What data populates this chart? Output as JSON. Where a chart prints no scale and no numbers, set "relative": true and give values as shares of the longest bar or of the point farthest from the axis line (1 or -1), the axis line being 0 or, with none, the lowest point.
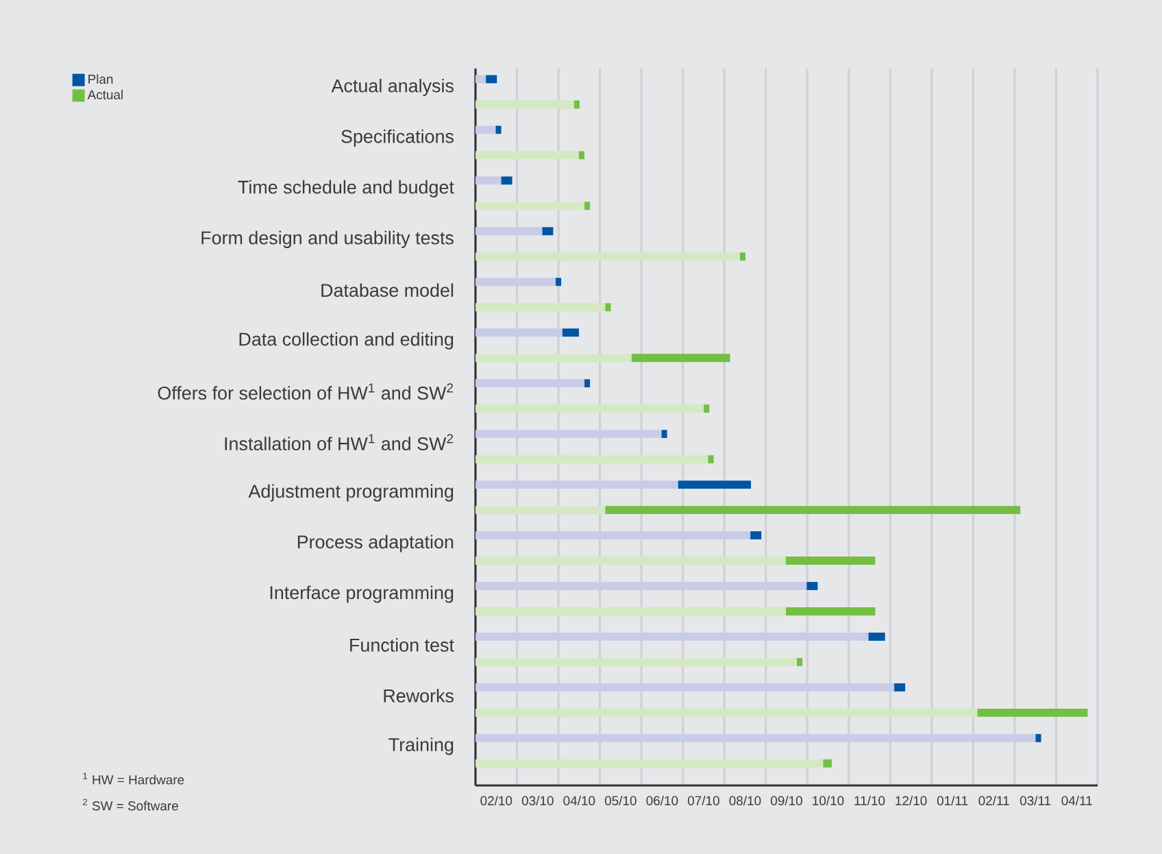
{
  "chart_data": {
    "type": "bar",
    "orientation": "horizontal",
    "stacked": true,
    "relative": true,
    "categories": [
      "Actual analysis",
      null,
      "Specifications",
      null,
      "Time schedule and budget",
      null,
      "Form design and usability tests",
      null,
      "Database model",
      null,
      "Data collection and editing",
      null,
      "Offers for selection of HW$^{1}$ and SW$^{2}$",
      null,
      "Installation of HW$^{1}$ and SW$^{2}$",
      null,
      "Adjustment programming",
      null,
      "Process adaptation",
      null,
      "Interface programming",
      null,
      "Function test",
      null,
      "Reworks",
      null,
      "Training",
      null
    ],
    "series": [
      {
        "colors": [
          "#c8cce8",
          "#d5e8c4",
          "#c8cce8",
          "#d5e8c4",
          "#c8cce8",
          "#d5e8c4",
          "#c8cce8",
          "#d5e8c4",
          "#c8cce8",
          "#d5e8c4",
          "#c8cce8",
          "#d5e8c4",
          "#c8cce8",
          "#d5e8c4",
          "#c8cce8",
          "#d5e8c4",
          "#c8cce8",
          "#d5e8c4",
          "#c8cce8",
          "#d5e8c4",
          "#c8cce8",
          "#d5e8c4",
          "#c8cce8",
          "#d5e8c4",
          "#c8cce8",
          "#d5e8c4",
          "#c8cce8",
          "#d5e8c4"
        ],
        "values": [
          0.017,
          0.161,
          0.033,
          0.169,
          0.042,
          0.178,
          0.109,
          0.432,
          0.131,
          0.212,
          0.142,
          0.255,
          0.178,
          0.373,
          0.304,
          0.38,
          0.331,
          0.212,
          0.449,
          0.507,
          0.541,
          0.507,
          0.642,
          0.525,
          0.684,
          0.82,
          0.915,
          0.568
        ]
      },
      {
        "name": "Plan",
        "color": "#0055a5",
        "values": [
          0.018,
          null,
          0.009,
          null,
          0.018,
          null,
          0.018,
          null,
          0.009,
          null,
          0.027,
          null,
          0.009,
          null,
          0.009,
          null,
          0.119,
          null,
          0.018,
          null,
          0.018,
          null,
          0.027,
          null,
          0.018,
          null,
          0.009,
          null
        ]
      },
      {
        "name": "Actual",
        "color": "#72bf44",
        "values": [
          null,
          0.009,
          null,
          0.009,
          null,
          0.009,
          null,
          0.009,
          null,
          0.009,
          null,
          0.161,
          null,
          0.009,
          null,
          0.009,
          null,
          0.678,
          null,
          0.146,
          null,
          0.146,
          null,
          0.009,
          null,
          0.18,
          null,
          0.014
        ]
      }
    ],
    "grid": "x",
    "legend": "top left",
    "annotations": [
      "02/10",
      "03/10",
      "04/10",
      "05/10",
      "06/10",
      "07/10",
      "08/10",
      "09/10",
      "10/10",
      "11/10",
      "12/10",
      "01/11",
      "02/11",
      "03/11",
      "04/11",
      "$^{1}$ HW = Hardware",
      "$^{2}$ SW = Software"
    ]
  }
}
